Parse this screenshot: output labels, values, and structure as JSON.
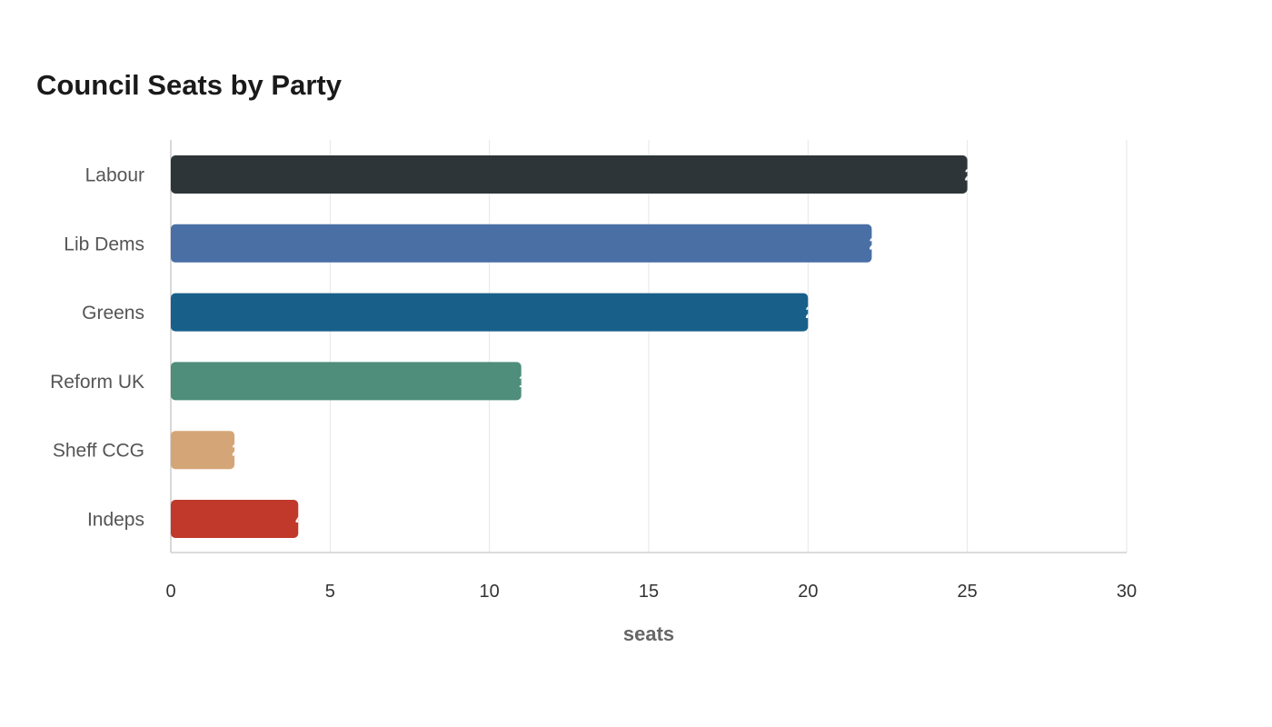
{
  "chart_data": {
    "type": "bar",
    "orientation": "horizontal",
    "title": "Council Seats by Party",
    "xlabel": "seats",
    "ylabel": "",
    "categories": [
      "Labour",
      "Lib Dems",
      "Greens",
      "Reform UK",
      "Sheff CCG",
      "Indeps"
    ],
    "values": [
      25,
      22,
      20,
      11,
      2,
      4
    ],
    "colors": [
      "#2d3538",
      "#4a6fa5",
      "#18608a",
      "#4e8e7b",
      "#d4a677",
      "#c0392b"
    ],
    "xlim": [
      0,
      30
    ],
    "xticks": [
      0,
      5,
      10,
      15,
      20,
      25,
      30
    ],
    "grid": true,
    "legend": "none"
  }
}
